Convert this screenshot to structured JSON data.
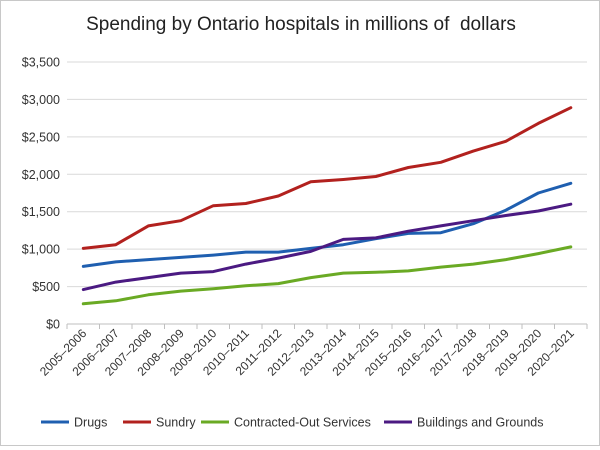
{
  "chart_data": {
    "type": "line",
    "title": "Spending by Ontario hospitals in millions of  dollars",
    "xlabel": "",
    "ylabel": "",
    "ylim": [
      0,
      3500
    ],
    "yticks": [
      "$0",
      "$500",
      "$1,000",
      "$1,500",
      "$2,000",
      "$2,500",
      "$3,000",
      "$3,500"
    ],
    "grid": "horizontal",
    "legend_position": "bottom",
    "categories": [
      "2005–2006",
      "2006–2007",
      "2007–2008",
      "2008–2009",
      "2009–2010",
      "2010–2011",
      "2011–2012",
      "2012–2013",
      "2013–2014",
      "2014–2015",
      "2015–2016",
      "2016–2017",
      "2017–2018",
      "2018–2019",
      "2019–2020",
      "2020–2021"
    ],
    "series": [
      {
        "name": "Drugs",
        "color": "#1f5fb0",
        "values": [
          770,
          830,
          860,
          890,
          920,
          960,
          960,
          1010,
          1060,
          1140,
          1210,
          1220,
          1340,
          1520,
          1750,
          1880
        ]
      },
      {
        "name": "Sundry",
        "color": "#b2211e",
        "values": [
          1010,
          1060,
          1310,
          1380,
          1580,
          1610,
          1710,
          1900,
          1930,
          1970,
          2090,
          2160,
          2310,
          2440,
          2680,
          2890
        ]
      },
      {
        "name": "Contracted-Out Services",
        "color": "#6aaa24",
        "values": [
          270,
          310,
          390,
          440,
          470,
          510,
          540,
          620,
          680,
          690,
          710,
          760,
          800,
          860,
          940,
          1030
        ]
      },
      {
        "name": "Buildings and Grounds",
        "color": "#4b1a82",
        "values": [
          460,
          560,
          620,
          680,
          700,
          800,
          880,
          970,
          1130,
          1150,
          1240,
          1310,
          1380,
          1450,
          1510,
          1600
        ]
      }
    ]
  }
}
